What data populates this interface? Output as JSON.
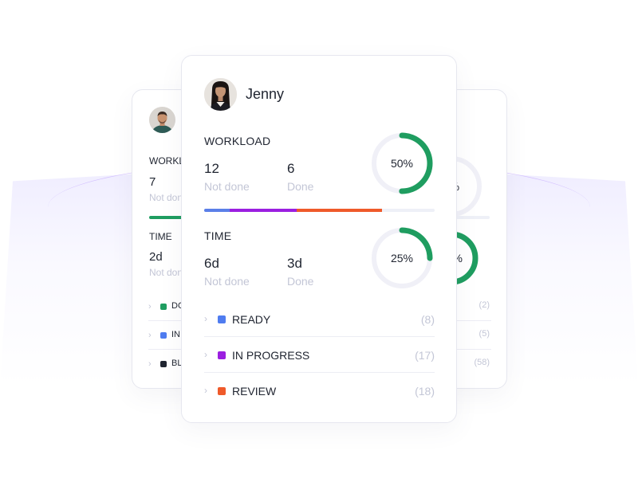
{
  "front_card": {
    "user_name": "Jenny",
    "workload": {
      "title": "WORKLOAD",
      "not_done_value": "12",
      "not_done_label": "Not done",
      "done_value": "6",
      "done_label": "Done",
      "percent_label": "50%",
      "percent": 0.5
    },
    "progress_bar": [
      {
        "color": "#5b7fe8",
        "fraction": 0.11
      },
      {
        "color": "#9b1fe0",
        "fraction": 0.29
      },
      {
        "color": "#ef5a2a",
        "fraction": 0.37
      }
    ],
    "time": {
      "title": "TIME",
      "not_done_value": "6d",
      "not_done_label": "Not done",
      "done_value": "3d",
      "done_label": "Done",
      "percent_label": "25%",
      "percent": 0.25
    },
    "statuses": [
      {
        "label": "READY",
        "count": "(8)",
        "color": "#4f7cf0"
      },
      {
        "label": "IN PROGRESS",
        "count": "(17)",
        "color": "#9b1fe0"
      },
      {
        "label": "REVIEW",
        "count": "(18)",
        "color": "#ef5a2a"
      }
    ]
  },
  "back_left_card": {
    "workload_title": "WORKL",
    "workload_value": "7",
    "workload_sub": "Not don",
    "time_title": "TIME",
    "time_value": "2d",
    "time_sub": "Not don",
    "statuses": [
      {
        "label": "DO",
        "color": "#1f9d60"
      },
      {
        "label": "IN",
        "color": "#4f7cf0"
      },
      {
        "label": "BL",
        "color": "#1f2430"
      }
    ]
  },
  "back_right_card": {
    "workload_percent_label": "0%",
    "time_percent_label": "75%",
    "time_percent": 0.75,
    "counts": [
      "(2)",
      "(5)",
      "(58)"
    ]
  },
  "colors": {
    "accent_green": "#1f9d60",
    "ring_track": "#f0f0f7",
    "muted_text": "#c3c6d6"
  }
}
